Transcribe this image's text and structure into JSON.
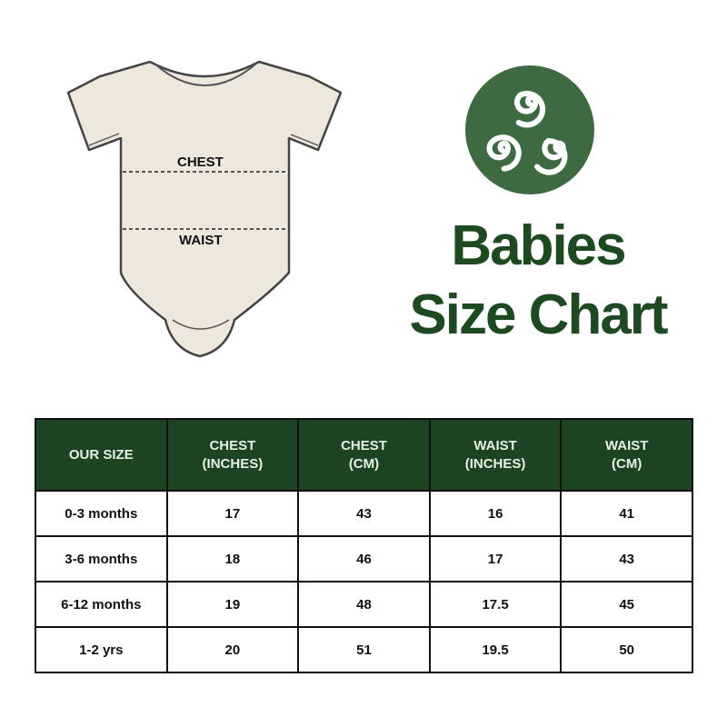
{
  "illustration": {
    "chest_label": "CHEST",
    "waist_label": "WAIST"
  },
  "logo": {
    "icon": "triskele-icon",
    "color": "#3e6a42"
  },
  "title": {
    "line1": "Babies",
    "line2": "Size Chart",
    "color": "#1e4a22"
  },
  "table": {
    "header_color": "#1c4423",
    "headers": [
      "OUR SIZE",
      "CHEST\n(INCHES)",
      "CHEST\n(CM)",
      "WAIST\n(INCHES)",
      "WAIST\n(CM)"
    ],
    "rows": [
      [
        "0-3 months",
        "17",
        "43",
        "16",
        "41"
      ],
      [
        "3-6 months",
        "18",
        "46",
        "17",
        "43"
      ],
      [
        "6-12 months",
        "19",
        "48",
        "17.5",
        "45"
      ],
      [
        "1-2 yrs",
        "20",
        "51",
        "19.5",
        "50"
      ]
    ]
  }
}
